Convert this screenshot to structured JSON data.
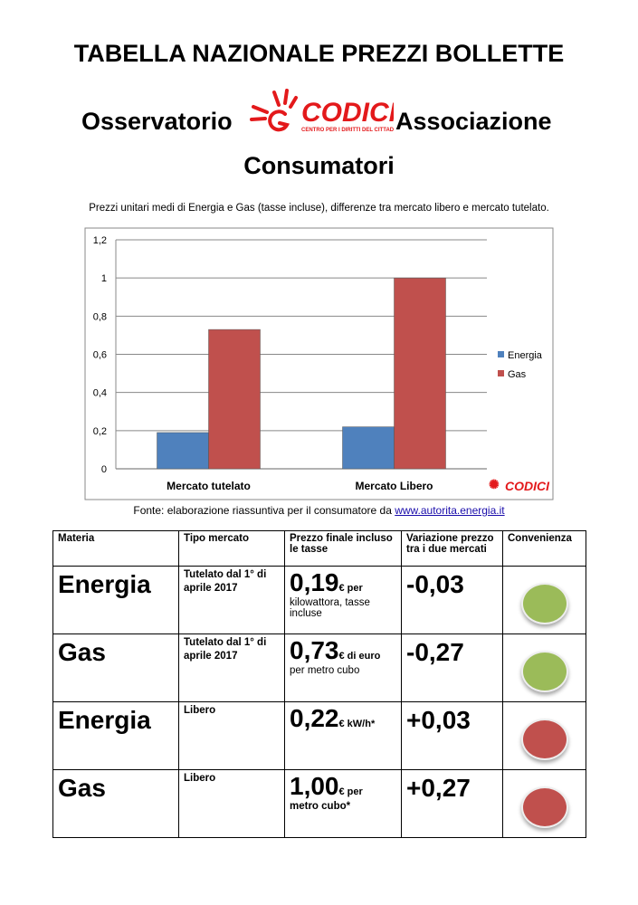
{
  "header": {
    "title": "TABELLA NAZIONALE PREZZI BOLLETTE",
    "line2_left": "Osservatorio",
    "line2_right": "Associazione",
    "line3": "Consumatori",
    "logo_text": "CODICI",
    "logo_subtext": "CENTRO PER I DIRITTI DEL CITTADINO",
    "subtitle": "Prezzi unitari medi di Energia e Gas (tasse incluse), differenze tra mercato libero e mercato tutelato."
  },
  "chart_data": {
    "type": "bar",
    "categories": [
      "Mercato tutelato",
      "Mercato Libero"
    ],
    "series": [
      {
        "name": "Energia",
        "values": [
          0.19,
          0.22
        ],
        "color": "#4f81bd"
      },
      {
        "name": "Gas",
        "values": [
          0.73,
          1.0
        ],
        "color": "#c0504d"
      }
    ],
    "yticks": [
      "0",
      "0,2",
      "0,4",
      "0,6",
      "0,8",
      "1",
      "1,2"
    ],
    "ylim": [
      0,
      1.2
    ],
    "legend": "right",
    "grid": true
  },
  "source": {
    "prefix": "Fonte:  elaborazione riassuntiva per il consumatore da ",
    "link": "www.autorita.energia.it"
  },
  "table": {
    "headers": [
      "Materia",
      "Tipo mercato",
      "Prezzo finale incluso le tasse",
      "Variazione prezzo tra i due mercati",
      "Convenienza"
    ],
    "rows": [
      {
        "materia": "Energia",
        "tipo": "Tutelato dal 1° di aprile 2017",
        "prezzo": "0,19",
        "unit": "€ per",
        "note": "kilowattora, tasse incluse",
        "variazione": "-0,03",
        "convenienza": "#9bbb59"
      },
      {
        "materia": "Gas",
        "tipo": "Tutelato dal 1° di aprile 2017",
        "prezzo": "0,73",
        "unit": "€  di euro",
        "note": "per metro cubo",
        "variazione": "-0,27",
        "convenienza": "#9bbb59"
      },
      {
        "materia": "Energia",
        "tipo": "Libero",
        "prezzo": "0,22",
        "unit": "€ kW/h*",
        "note": "",
        "variazione": "+0,03",
        "convenienza": "#c0504d"
      },
      {
        "materia": "Gas",
        "tipo": "Libero",
        "prezzo": "1,00",
        "unit": "€ per",
        "note": "metro cubo*",
        "variazione": "+0,27",
        "convenienza": "#c0504d"
      }
    ]
  }
}
